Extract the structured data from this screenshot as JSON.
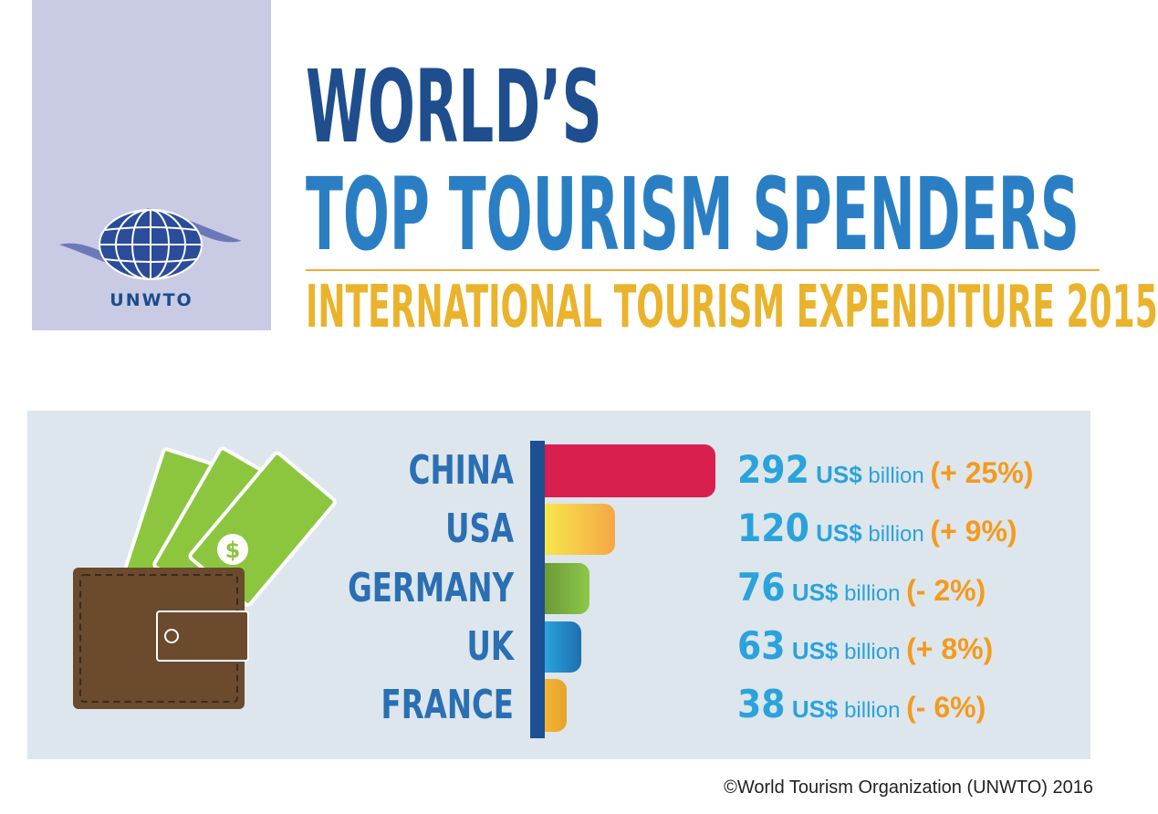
{
  "logo": {
    "text": "UNWTO"
  },
  "header": {
    "title_line1": "WORLD’S",
    "title_line2": "TOP TOURISM SPENDERS",
    "subtitle": "INTERNATIONAL TOURISM EXPENDITURE 2015"
  },
  "colors": {
    "navy": "#1d4f91",
    "title_blue": "#2a7fc4",
    "subtitle_gold": "#eab32c",
    "value_blue": "#2aa3dc",
    "change_orange": "#f49a1e",
    "panel_bg": "#dde6ec",
    "logo_bg": "#c8cbe3"
  },
  "chart_data": {
    "type": "bar",
    "orientation": "horizontal",
    "categories": [
      "CHINA",
      "USA",
      "GERMANY",
      "UK",
      "FRANCE"
    ],
    "values": [
      292,
      120,
      76,
      63,
      38
    ],
    "unit_currency": "US$",
    "unit_word": "billion",
    "changes": [
      "(+ 25%)",
      "(+ 9%)",
      "(- 2%)",
      "(+ 8%)",
      "(- 6%)"
    ],
    "bar_colors": [
      [
        "#d81f4e",
        "#d81f4e"
      ],
      [
        "#f7e64b",
        "#f5a746"
      ],
      [
        "#6c9a36",
        "#8dc84a"
      ],
      [
        "#2aa3dc",
        "#1e6fb0"
      ],
      [
        "#f2b531",
        "#e6a22d"
      ]
    ],
    "title": "",
    "xlabel": "",
    "ylabel": ""
  },
  "icons": [
    "globe-logo-icon",
    "wallet-icon",
    "dollar-bill-icon"
  ],
  "footer": {
    "copyright": "©World Tourism Organization (UNWTO) 2016"
  }
}
